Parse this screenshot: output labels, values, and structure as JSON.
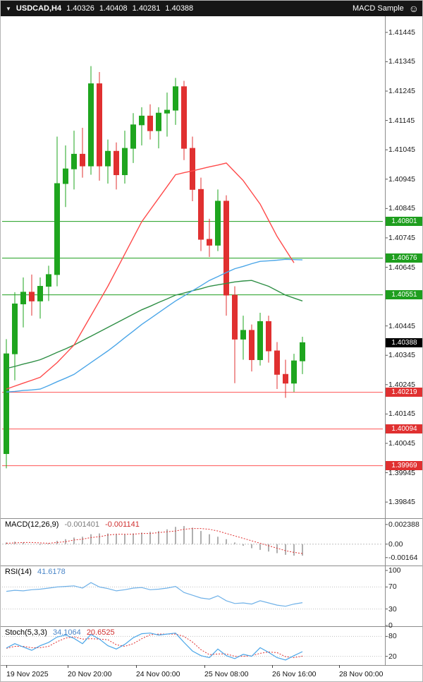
{
  "window": {
    "title_symbol": "USDCAD,H4",
    "ohlc": {
      "open": "1.40326",
      "high": "1.40408",
      "low": "1.40281",
      "close": "1.40388"
    },
    "indicator_badge": "MACD Sample"
  },
  "colors": {
    "bull": "#1ea51e",
    "bear": "#e03030",
    "ma_fast_red": "#ff4a4a",
    "ma_mid_blue": "#4ba6e8",
    "ma_slow_green": "#2f8f46",
    "level_green": "#1e9e1e",
    "level_red": "#ff5555",
    "level_red_box": "#e03030",
    "current_price_box": "#000000",
    "macd_hist": "#8f8f8f",
    "macd_signal": "#e03030",
    "rsi_line": "#6fb1e8",
    "stoch_k": "#4ba6e8",
    "stoch_d": "#e03030",
    "grid_dotted": "#c0c0c0"
  },
  "chart_data": {
    "type": "candlestick",
    "symbol": "USDCAD",
    "timeframe": "H4",
    "current_price": 1.40388,
    "price_axis": {
      "ylim": [
        1.3979,
        1.415
      ],
      "ticks": [
        1.41445,
        1.41345,
        1.41245,
        1.41145,
        1.41045,
        1.40945,
        1.40845,
        1.40745,
        1.40645,
        1.40545,
        1.40445,
        1.40345,
        1.40245,
        1.40145,
        1.40045,
        1.39945,
        1.39845
      ]
    },
    "levels": [
      {
        "price": 1.40801,
        "kind": "resistance"
      },
      {
        "price": 1.40676,
        "kind": "resistance"
      },
      {
        "price": 1.40551,
        "kind": "resistance"
      },
      {
        "price": 1.40219,
        "kind": "support"
      },
      {
        "price": 1.40094,
        "kind": "support"
      },
      {
        "price": 1.39969,
        "kind": "support"
      }
    ],
    "candles": [
      [
        1.4001,
        1.404,
        1.3996,
        1.4035
      ],
      [
        1.4035,
        1.4056,
        1.4026,
        1.4052
      ],
      [
        1.4052,
        1.4061,
        1.4044,
        1.4056
      ],
      [
        1.4056,
        1.4062,
        1.4048,
        1.4053
      ],
      [
        1.4053,
        1.4061,
        1.4047,
        1.4058
      ],
      [
        1.4058,
        1.4065,
        1.4053,
        1.4062
      ],
      [
        1.4062,
        1.4109,
        1.4058,
        1.4093
      ],
      [
        1.4093,
        1.4106,
        1.4085,
        1.4098
      ],
      [
        1.4098,
        1.4111,
        1.4091,
        1.4103
      ],
      [
        1.4103,
        1.4112,
        1.4095,
        1.4099
      ],
      [
        1.4099,
        1.4133,
        1.4096,
        1.4127
      ],
      [
        1.4127,
        1.4131,
        1.4094,
        1.4099
      ],
      [
        1.4099,
        1.4108,
        1.4093,
        1.4104
      ],
      [
        1.4104,
        1.4107,
        1.4091,
        1.4096
      ],
      [
        1.4096,
        1.4111,
        1.4093,
        1.4105
      ],
      [
        1.4105,
        1.4117,
        1.41,
        1.4113
      ],
      [
        1.4113,
        1.4119,
        1.4106,
        1.4116
      ],
      [
        1.4116,
        1.412,
        1.4108,
        1.4111
      ],
      [
        1.4111,
        1.4119,
        1.4105,
        1.4117
      ],
      [
        1.4117,
        1.4124,
        1.4109,
        1.4118
      ],
      [
        1.4118,
        1.4129,
        1.4113,
        1.4126
      ],
      [
        1.4126,
        1.4128,
        1.4101,
        1.4105
      ],
      [
        1.4105,
        1.4109,
        1.4087,
        1.4091
      ],
      [
        1.4091,
        1.4095,
        1.407,
        1.4074
      ],
      [
        1.4074,
        1.4081,
        1.4068,
        1.4072
      ],
      [
        1.4072,
        1.4091,
        1.407,
        1.4087
      ],
      [
        1.4087,
        1.4089,
        1.4048,
        1.4055
      ],
      [
        1.4055,
        1.4058,
        1.4025,
        1.404
      ],
      [
        1.404,
        1.4048,
        1.4033,
        1.4043
      ],
      [
        1.4043,
        1.4045,
        1.4029,
        1.4033
      ],
      [
        1.4033,
        1.4049,
        1.4031,
        1.4046
      ],
      [
        1.4046,
        1.4048,
        1.4032,
        1.4036
      ],
      [
        1.4036,
        1.4039,
        1.4023,
        1.4028
      ],
      [
        1.4028,
        1.4033,
        1.402,
        1.4025
      ],
      [
        1.4025,
        1.4035,
        1.4022,
        1.40326
      ],
      [
        1.40326,
        1.40408,
        1.40281,
        1.40388
      ]
    ],
    "overlays": {
      "ma_red": [
        1.4023,
        1.4024,
        1.4025,
        1.4026,
        1.4027,
        1.40295,
        1.4032,
        1.4035,
        1.4038,
        1.4043,
        1.4048,
        1.4053,
        1.4058,
        1.40635,
        1.4069,
        1.40745,
        1.408,
        1.4084,
        1.4088,
        1.4092,
        1.4096,
        1.40967,
        1.40973,
        1.4098,
        1.40987,
        1.40993,
        1.41,
        1.4097,
        1.4094,
        1.409,
        1.4086,
        1.40805,
        1.4075,
        1.40705,
        1.4066,
        null
      ],
      "ma_blue": [
        1.4022,
        1.40222,
        1.40225,
        1.40227,
        1.4023,
        1.40242,
        1.40255,
        1.40267,
        1.4028,
        1.403,
        1.4032,
        1.4034,
        1.4036,
        1.40382,
        1.40405,
        1.40427,
        1.4045,
        1.4047,
        1.4049,
        1.4051,
        1.4053,
        1.40547,
        1.40565,
        1.40582,
        1.406,
        1.40613,
        1.40627,
        1.4064,
        1.40648,
        1.40657,
        1.40665,
        1.40667,
        1.40669,
        1.40672,
        1.40671,
        1.4067
      ],
      "ma_green": [
        1.403,
        1.40307,
        1.40315,
        1.40322,
        1.4033,
        1.40342,
        1.40355,
        1.40367,
        1.4038,
        1.40395,
        1.4041,
        1.40425,
        1.4044,
        1.40455,
        1.4047,
        1.40485,
        1.405,
        1.40512,
        1.40525,
        1.40537,
        1.4055,
        1.40557,
        1.40565,
        1.40572,
        1.4058,
        1.40585,
        1.4059,
        1.40595,
        1.40598,
        1.406,
        1.4059,
        1.4058,
        1.40565,
        1.4055,
        1.4054,
        1.4053
      ]
    },
    "macd": {
      "label": "MACD(12,26,9)",
      "main_value": "-0.001401",
      "signal_value": "-0.001141",
      "ylim": [
        -0.0026,
        0.00315
      ],
      "axis_labels": [
        {
          "text": "0.002388",
          "v": 0.002388
        },
        {
          "text": "0.00",
          "v": 0
        },
        {
          "text": "-0.00164",
          "v": -0.00164
        }
      ],
      "histogram": [
        0.0002,
        0.0003,
        0.0002,
        0.0,
        -0.0001,
        0.0001,
        0.0004,
        0.0006,
        0.0008,
        0.0009,
        0.0012,
        0.0013,
        0.0013,
        0.0012,
        0.0012,
        0.0013,
        0.0014,
        0.0015,
        0.0016,
        0.0018,
        0.0021,
        0.0022,
        0.002,
        0.0016,
        0.0012,
        0.0009,
        0.0006,
        0.0002,
        -0.0002,
        -0.0005,
        -0.0007,
        -0.0009,
        -0.0011,
        -0.0013,
        -0.0014,
        -0.001401
      ],
      "signal": [
        0.0001,
        0.00015,
        0.0002,
        0.0002,
        0.00015,
        0.0001,
        0.0002,
        0.0003,
        0.0005,
        0.0006,
        0.0008,
        0.0009,
        0.0011,
        0.0012,
        0.0012,
        0.0012,
        0.0013,
        0.0013,
        0.0014,
        0.0015,
        0.0016,
        0.0018,
        0.0019,
        0.0019,
        0.0018,
        0.0016,
        0.0013,
        0.001,
        0.0007,
        0.0004,
        0.0001,
        -0.0002,
        -0.0005,
        -0.0008,
        -0.001,
        -0.001141
      ]
    },
    "rsi": {
      "label": "RSI(14)",
      "value": "41.6178",
      "levels": [
        70,
        30
      ],
      "axis_labels": [
        {
          "text": "100",
          "v": 100
        },
        {
          "text": "70",
          "v": 70
        },
        {
          "text": "30",
          "v": 30
        },
        {
          "text": "0",
          "v": 0
        }
      ],
      "values": [
        62,
        64,
        63,
        65,
        66,
        68,
        70,
        71,
        72,
        68,
        78,
        70,
        67,
        63,
        65,
        68,
        69,
        65,
        66,
        68,
        71,
        60,
        55,
        50,
        48,
        54,
        45,
        40,
        41,
        39,
        45,
        41,
        37,
        35,
        39,
        41.6
      ]
    },
    "stoch": {
      "label": "Stoch(5,3,3)",
      "k_value": "34.1064",
      "d_value": "20.6525",
      "levels": [
        80,
        20
      ],
      "axis_labels": [
        {
          "text": "80",
          "v": 80
        },
        {
          "text": "20",
          "v": 20
        }
      ],
      "k": [
        45,
        58,
        48,
        38,
        52,
        62,
        78,
        84,
        74,
        58,
        86,
        72,
        52,
        42,
        56,
        76,
        88,
        90,
        84,
        87,
        90,
        62,
        36,
        22,
        16,
        42,
        22,
        13,
        26,
        20,
        46,
        32,
        16,
        9,
        22,
        34.1
      ],
      "d": [
        44,
        50,
        50,
        46,
        46,
        50,
        64,
        75,
        79,
        72,
        73,
        72,
        70,
        55,
        50,
        58,
        73,
        85,
        87,
        87,
        87,
        80,
        63,
        40,
        25,
        27,
        27,
        20,
        20,
        22,
        29,
        33,
        31,
        19,
        16,
        20.65
      ]
    },
    "time_axis": {
      "labels": [
        {
          "text": "19 Nov 2025",
          "bar": 0
        },
        {
          "text": "20 Nov 20:00",
          "bar": 7.25
        },
        {
          "text": "24 Nov 00:00",
          "bar": 15.33
        },
        {
          "text": "25 Nov 08:00",
          "bar": 23.42
        },
        {
          "text": "26 Nov 16:00",
          "bar": 31.42
        },
        {
          "text": "28 Nov 00:00",
          "bar": 39.33
        }
      ]
    }
  }
}
